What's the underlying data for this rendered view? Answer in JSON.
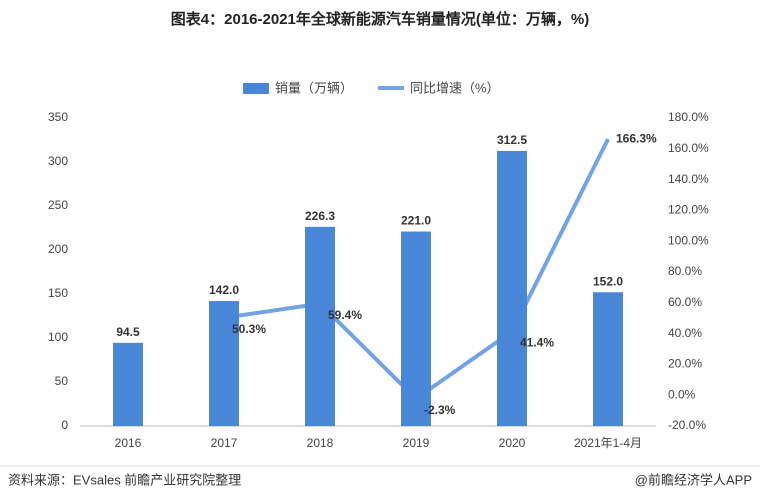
{
  "chart_data": {
    "type": "bar_line",
    "title": "图表4：2016-2021年全球新能源汽车销量情况(单位：万辆，%)",
    "categories": [
      "2016",
      "2017",
      "2018",
      "2019",
      "2020",
      "2021年1-4月"
    ],
    "series": [
      {
        "name": "销量（万辆）",
        "type": "bar",
        "color": "#4a86d8",
        "values": [
          94.5,
          142.0,
          226.3,
          221.0,
          312.5,
          152.0
        ],
        "value_labels": [
          "94.5",
          "142.0",
          "226.3",
          "221.0",
          "312.5",
          "152.0"
        ]
      },
      {
        "name": "同比增速（%）",
        "type": "line",
        "axis": "y2",
        "color": "#74a3e3",
        "values": [
          null,
          50.3,
          59.4,
          -2.3,
          41.4,
          166.3
        ],
        "value_labels": [
          null,
          "50.3%",
          "59.4%",
          "-2.3%",
          "41.4%",
          "166.3%"
        ]
      }
    ],
    "ylim": [
      0,
      350
    ],
    "yticks": [
      0,
      50,
      100,
      150,
      200,
      250,
      300,
      350
    ],
    "y2lim": [
      -20,
      180
    ],
    "y2ticks": [
      {
        "value": -20,
        "label": "-20.0%"
      },
      {
        "value": 0,
        "label": "0.0%"
      },
      {
        "value": 20,
        "label": "20.0%"
      },
      {
        "value": 40,
        "label": "40.0%"
      },
      {
        "value": 60,
        "label": "60.0%"
      },
      {
        "value": 80,
        "label": "80.0%"
      },
      {
        "value": 100,
        "label": "100.0%"
      },
      {
        "value": 120,
        "label": "120.0%"
      },
      {
        "value": 140,
        "label": "140.0%"
      },
      {
        "value": 160,
        "label": "160.0%"
      },
      {
        "value": 180,
        "label": "180.0%"
      }
    ],
    "legend": "top",
    "source": "资料来源：EVsales 前瞻产业研究院整理",
    "credit": "@前瞻经济学人APP"
  }
}
